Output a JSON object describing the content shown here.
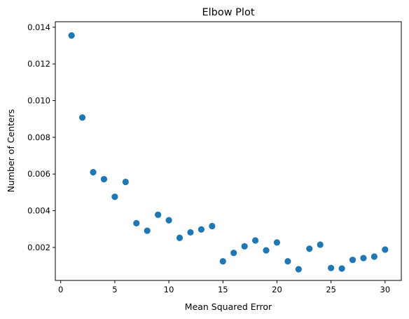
{
  "chart_data": {
    "type": "scatter",
    "title": "Elbow Plot",
    "xlabel": "Mean Squared Error",
    "ylabel": "Number of Centers",
    "xlim": [
      -0.5,
      31.5
    ],
    "ylim": [
      0.0002,
      0.0143
    ],
    "xticks": [
      0,
      5,
      10,
      15,
      20,
      25,
      30
    ],
    "yticks": [
      0.002,
      0.004,
      0.006,
      0.008,
      0.01,
      0.012,
      0.014
    ],
    "ytick_labels": [
      "0.002",
      "0.004",
      "0.006",
      "0.008",
      "0.010",
      "0.012",
      "0.014"
    ],
    "grid": false,
    "marker_color": "#1f77b4",
    "points": [
      {
        "x": 1,
        "y": 0.01355
      },
      {
        "x": 2,
        "y": 0.00908
      },
      {
        "x": 3,
        "y": 0.0061
      },
      {
        "x": 4,
        "y": 0.00572
      },
      {
        "x": 5,
        "y": 0.00476
      },
      {
        "x": 6,
        "y": 0.00557
      },
      {
        "x": 7,
        "y": 0.00332
      },
      {
        "x": 8,
        "y": 0.00291
      },
      {
        "x": 9,
        "y": 0.00378
      },
      {
        "x": 10,
        "y": 0.00348
      },
      {
        "x": 11,
        "y": 0.00252
      },
      {
        "x": 12,
        "y": 0.00282
      },
      {
        "x": 13,
        "y": 0.00298
      },
      {
        "x": 14,
        "y": 0.00316
      },
      {
        "x": 15,
        "y": 0.00124
      },
      {
        "x": 16,
        "y": 0.0017
      },
      {
        "x": 17,
        "y": 0.00206
      },
      {
        "x": 18,
        "y": 0.00238
      },
      {
        "x": 19,
        "y": 0.00184
      },
      {
        "x": 20,
        "y": 0.00227
      },
      {
        "x": 21,
        "y": 0.00124
      },
      {
        "x": 22,
        "y": 0.00081
      },
      {
        "x": 23,
        "y": 0.00193
      },
      {
        "x": 24,
        "y": 0.00215
      },
      {
        "x": 25,
        "y": 0.00088
      },
      {
        "x": 26,
        "y": 0.00085
      },
      {
        "x": 27,
        "y": 0.00132
      },
      {
        "x": 28,
        "y": 0.00142
      },
      {
        "x": 29,
        "y": 0.0015
      },
      {
        "x": 30,
        "y": 0.00188
      }
    ]
  }
}
